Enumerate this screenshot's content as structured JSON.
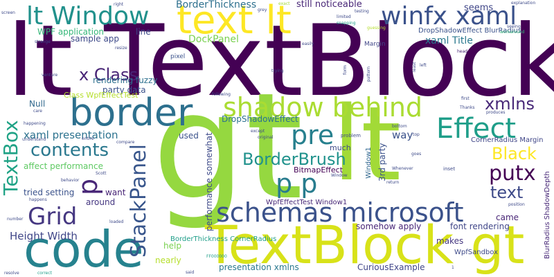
{
  "words": [
    "lt TextBlock",
    "gt",
    "lt",
    "code",
    "TextBlock gt",
    "border",
    "text lt",
    "lt Window",
    "winfx xaml",
    "shadow behind",
    "Effect",
    "pre",
    "p p",
    "p",
    "schemas microsoft",
    "Grid",
    "contents",
    "TextBox",
    "StackPanel",
    "putx",
    "BorderBrush",
    "Black",
    "text",
    "xmlns",
    "x Class",
    "xaml presentation",
    "Height Width",
    "DockPanel",
    "BorderThickness",
    "still noticeable",
    "seems",
    "xaml Title",
    "WPF application",
    "sample app",
    "rendering fuzzy",
    "party data",
    "affect performance",
    "tried setting",
    "want",
    "around",
    "Null",
    "Class WpfEffectTest",
    "DropShadowEffect",
    "DropShadowEffect BlurRadius",
    "BorderThickness CornerRadius",
    "CornerRadius Margin",
    "BitmapEffect",
    "3rd party",
    "WpfEffectTest Window1",
    "somehow apply",
    "font rendering",
    "makes",
    "came",
    "help",
    "nearly",
    "presentation xmlns",
    "CuriousExample",
    "WpfSandbox",
    "performance somewhat",
    "BlurRadius ShadowDepth",
    "way",
    "much",
    "used",
    "Window1",
    "line",
    "pixel",
    "Margin",
    "head",
    "right",
    "exact",
    "grey",
    "testing",
    "limited",
    "snapping",
    "guessing",
    "screen",
    "strange",
    "resize",
    "easily",
    "explanation",
    "seeing",
    "workaround",
    "venture",
    "trying",
    "form",
    "pattern",
    "least",
    "following",
    "first",
    "Thanks",
    "produces",
    "care",
    "happening",
    "understand",
    "entire",
    "compare",
    "behavior",
    "happens",
    "number",
    "Scott",
    "loaded",
    "Window",
    "problem",
    "original",
    "except",
    "bottom",
    "top",
    "goes",
    "Whenever",
    "inset",
    "return",
    "position",
    "FF000000",
    "resolve",
    "correct",
    "said",
    "left",
    "1"
  ],
  "colors": {
    "background": "#ffffff",
    "dark_purple": "#440154",
    "indigo": "#3e4a89",
    "blue": "#31688e",
    "teal": "#26828e",
    "green_teal": "#1f9e89",
    "green": "#35b779",
    "light_green": "#6ece58",
    "lime": "#b5de2b",
    "yellow": "#fde725"
  }
}
